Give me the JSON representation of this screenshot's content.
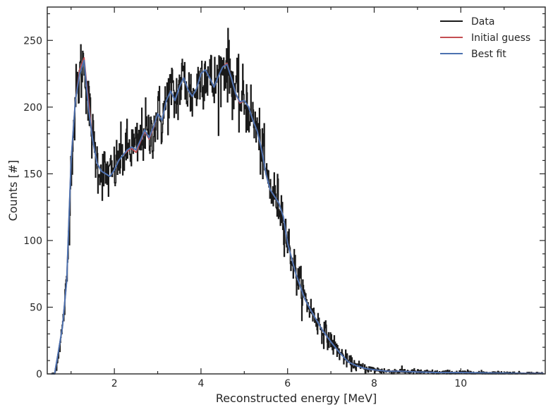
{
  "chart_data": {
    "type": "line",
    "xlabel": "Reconstructed energy [MeV]",
    "ylabel": "Counts [#]",
    "xlim": [
      0.45,
      11.95
    ],
    "ylim": [
      0,
      275
    ],
    "x_ticks": [
      2,
      4,
      6,
      8,
      10
    ],
    "y_ticks": [
      0,
      50,
      100,
      150,
      200,
      250
    ],
    "grid": false,
    "legend_position": "top-right",
    "series": [
      {
        "name": "Data",
        "color": "#1a1a1a",
        "style": "noisy-step",
        "x": [
          0.55,
          0.62,
          0.7,
          0.8,
          0.9,
          1.0,
          1.1,
          1.2,
          1.3,
          1.4,
          1.5,
          1.6,
          1.7,
          1.8,
          1.9,
          2.0,
          2.1,
          2.2,
          2.3,
          2.4,
          2.5,
          2.6,
          2.7,
          2.8,
          2.9,
          3.0,
          3.1,
          3.2,
          3.3,
          3.4,
          3.5,
          3.6,
          3.7,
          3.8,
          3.9,
          4.0,
          4.1,
          4.2,
          4.3,
          4.4,
          4.5,
          4.6,
          4.7,
          4.8,
          4.9,
          5.0,
          5.1,
          5.2,
          5.3,
          5.4,
          5.5,
          5.6,
          5.7,
          5.8,
          5.9,
          6.0,
          6.2,
          6.4,
          6.6,
          6.8,
          7.0,
          7.2,
          7.4,
          7.6,
          7.8,
          8.0,
          8.3,
          8.6,
          9.0,
          9.5,
          10.0,
          10.5,
          11.0,
          11.5,
          11.9
        ],
        "y": [
          0,
          0,
          15,
          35,
          70,
          160,
          205,
          225,
          235,
          200,
          175,
          158,
          152,
          150,
          148,
          153,
          160,
          164,
          168,
          170,
          168,
          175,
          183,
          177,
          185,
          195,
          190,
          205,
          212,
          205,
          215,
          222,
          213,
          208,
          214,
          225,
          228,
          222,
          215,
          223,
          230,
          232,
          222,
          210,
          204,
          205,
          200,
          190,
          182,
          168,
          150,
          138,
          133,
          128,
          118,
          98,
          74,
          56,
          44,
          33,
          24,
          16,
          9,
          6,
          4,
          3,
          2,
          2,
          1.5,
          1,
          1,
          0.8,
          0.6,
          0.4,
          0.4
        ]
      },
      {
        "name": "Initial guess",
        "color": "#c44e52",
        "x": [
          0.55,
          0.62,
          0.7,
          0.8,
          0.9,
          1.0,
          1.1,
          1.2,
          1.3,
          1.4,
          1.5,
          1.6,
          1.7,
          1.8,
          1.9,
          2.0,
          2.1,
          2.2,
          2.3,
          2.4,
          2.5,
          2.6,
          2.7,
          2.8,
          2.9,
          3.0,
          3.1,
          3.2,
          3.3,
          3.4,
          3.5,
          3.6,
          3.7,
          3.8,
          3.9,
          4.0,
          4.1,
          4.2,
          4.3,
          4.4,
          4.5,
          4.6,
          4.7,
          4.8,
          4.9,
          5.0,
          5.1,
          5.2,
          5.3,
          5.4,
          5.5,
          5.6,
          5.7,
          5.8,
          5.9,
          6.0,
          6.2,
          6.4,
          6.6,
          6.8,
          7.0,
          7.2,
          7.4,
          7.6,
          7.8,
          8.0,
          8.3,
          8.6,
          9.0,
          9.5,
          10.0,
          10.5,
          11.0,
          11.5,
          11.9
        ],
        "y": [
          0,
          0,
          15,
          35,
          70,
          160,
          205,
          228,
          237,
          205,
          175,
          158,
          152,
          150,
          148,
          153,
          160,
          164,
          167,
          169,
          166,
          174,
          182,
          176,
          184,
          195,
          190,
          205,
          212,
          205,
          215,
          222,
          213,
          208,
          214,
          225,
          228,
          222,
          215,
          223,
          230,
          233,
          222,
          210,
          203,
          205,
          200,
          190,
          182,
          168,
          150,
          138,
          133,
          128,
          118,
          98,
          74,
          56,
          44,
          33,
          24,
          16,
          9,
          6,
          4,
          3,
          2,
          2,
          1.5,
          1,
          1,
          0.8,
          0.6,
          0.4,
          0.4
        ]
      },
      {
        "name": "Best fit",
        "color": "#4c72b0",
        "x": [
          0.55,
          0.62,
          0.7,
          0.8,
          0.9,
          1.0,
          1.1,
          1.2,
          1.3,
          1.4,
          1.5,
          1.6,
          1.7,
          1.8,
          1.9,
          2.0,
          2.1,
          2.2,
          2.3,
          2.4,
          2.5,
          2.6,
          2.7,
          2.8,
          2.9,
          3.0,
          3.1,
          3.2,
          3.3,
          3.4,
          3.5,
          3.6,
          3.7,
          3.8,
          3.9,
          4.0,
          4.1,
          4.2,
          4.3,
          4.4,
          4.5,
          4.6,
          4.7,
          4.8,
          4.9,
          5.0,
          5.1,
          5.2,
          5.3,
          5.4,
          5.5,
          5.6,
          5.7,
          5.8,
          5.9,
          6.0,
          6.2,
          6.4,
          6.6,
          6.8,
          7.0,
          7.2,
          7.4,
          7.6,
          7.8,
          8.0,
          8.3,
          8.6,
          9.0,
          9.5,
          10.0,
          10.5,
          11.0,
          11.5,
          11.9
        ],
        "y": [
          0,
          0,
          15,
          35,
          70,
          160,
          205,
          225,
          235,
          200,
          175,
          158,
          152,
          150,
          148,
          153,
          160,
          164,
          168,
          170,
          168,
          175,
          183,
          177,
          185,
          195,
          190,
          205,
          212,
          205,
          215,
          222,
          213,
          208,
          214,
          225,
          228,
          222,
          215,
          223,
          230,
          232,
          222,
          210,
          204,
          205,
          200,
          190,
          182,
          168,
          150,
          138,
          133,
          128,
          118,
          98,
          74,
          56,
          44,
          33,
          24,
          16,
          9,
          6,
          4,
          3,
          2,
          2,
          1.5,
          1,
          1,
          0.8,
          0.6,
          0.4,
          0.4
        ]
      }
    ]
  }
}
